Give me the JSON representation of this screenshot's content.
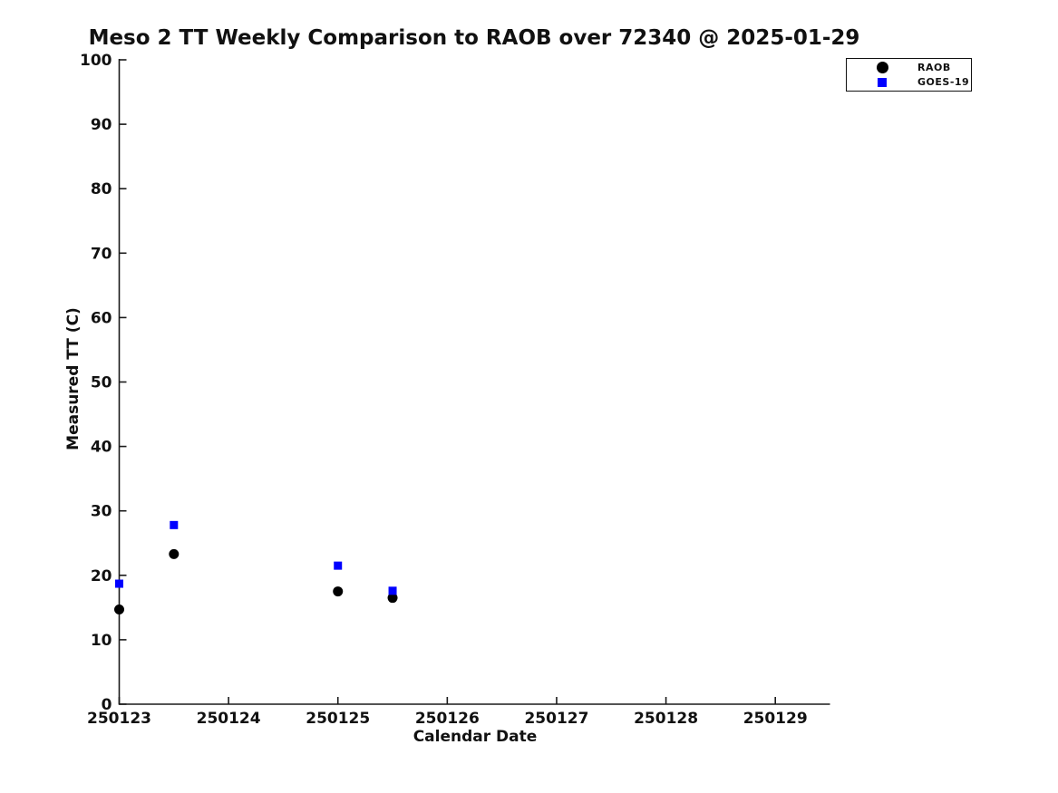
{
  "chart_data": {
    "type": "scatter",
    "title": "Meso 2 TT Weekly Comparison to RAOB over 72340 @ 2025-01-29",
    "xlabel": "Calendar Date",
    "ylabel": "Measured TT (C)",
    "xlim": [
      250123,
      250129.5
    ],
    "ylim": [
      0,
      100
    ],
    "x_ticks": [
      250123,
      250124,
      250125,
      250126,
      250127,
      250128,
      250129
    ],
    "x_tick_labels": [
      "250123",
      "250124",
      "250125",
      "250126",
      "250127",
      "250128",
      "250129"
    ],
    "y_ticks": [
      0,
      10,
      20,
      30,
      40,
      50,
      60,
      70,
      80,
      90,
      100
    ],
    "y_tick_labels": [
      "0",
      "10",
      "20",
      "30",
      "40",
      "50",
      "60",
      "70",
      "80",
      "90",
      "100"
    ],
    "grid": false,
    "legend_position": "top-right-outside-plot",
    "axis_color": "#1a1a1a",
    "background_color": "#ffffff",
    "series": [
      {
        "name": "RAOB",
        "marker": "circle",
        "color": "#000000",
        "points": [
          [
            250123.0,
            14.7
          ],
          [
            250123.5,
            23.3
          ],
          [
            250125.0,
            17.5
          ],
          [
            250125.5,
            16.5
          ]
        ]
      },
      {
        "name": "GOES-19",
        "marker": "square",
        "color": "#0000ff",
        "points": [
          [
            250123.0,
            18.7
          ],
          [
            250123.5,
            27.8
          ],
          [
            250125.0,
            21.5
          ],
          [
            250125.5,
            17.6
          ]
        ]
      }
    ]
  }
}
